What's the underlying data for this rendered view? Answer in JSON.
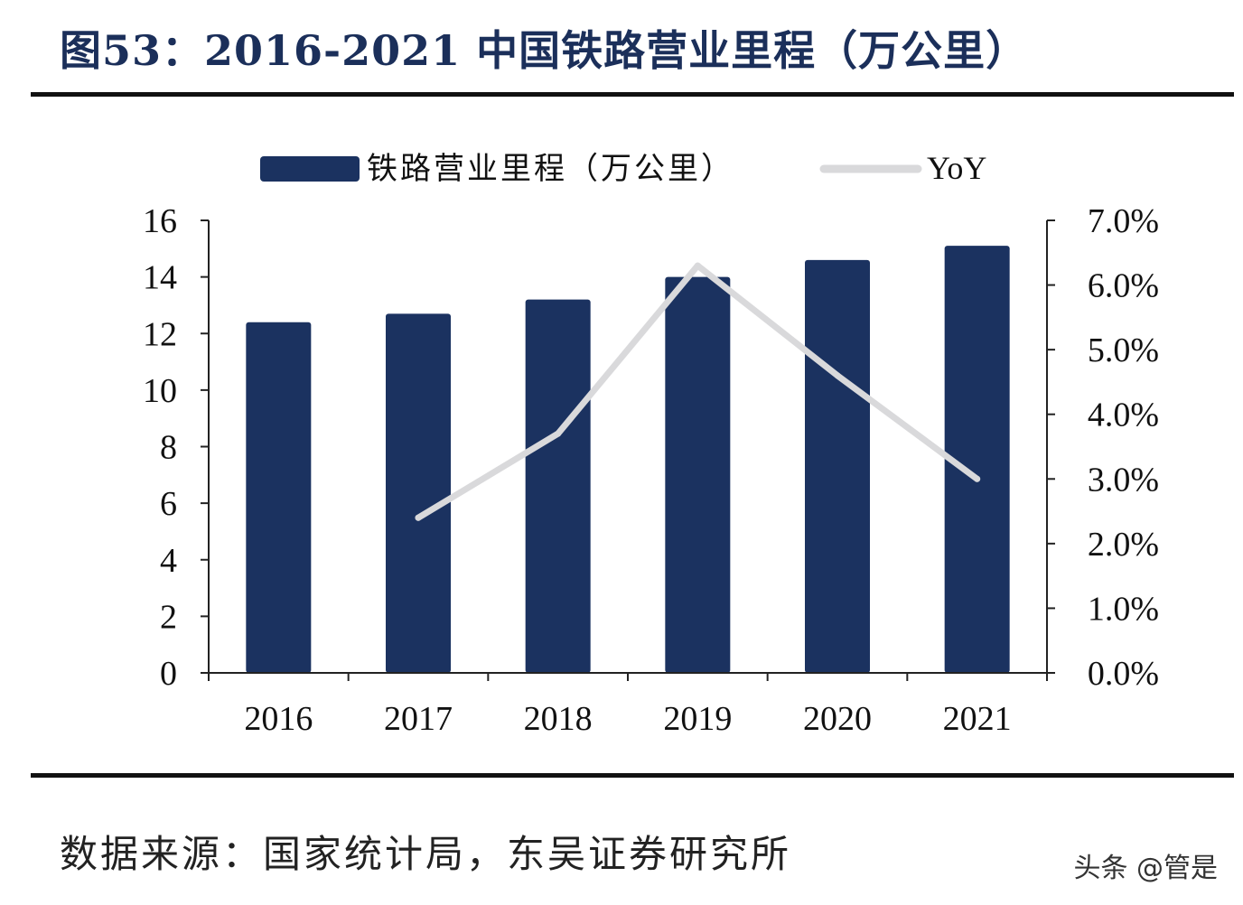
{
  "figure": {
    "title": "图53：2016-2021 中国铁路营业里程（万公里）",
    "source": "数据来源：国家统计局，东吴证券研究所",
    "watermark": "头条 @管是"
  },
  "colors": {
    "bar": "#1b3260",
    "line": "#d9d9db",
    "axis": "#222222",
    "text": "#111111",
    "title": "#1b2f5a"
  },
  "chart_data": {
    "type": "bar",
    "categories": [
      "2016",
      "2017",
      "2018",
      "2019",
      "2020",
      "2021"
    ],
    "series": [
      {
        "name": "铁路营业里程（万公里）",
        "type": "bar",
        "axis": "left",
        "values": [
          12.4,
          12.7,
          13.2,
          14.0,
          14.6,
          15.1
        ]
      },
      {
        "name": "YoY",
        "type": "line",
        "axis": "right",
        "values": [
          null,
          2.4,
          3.7,
          6.3,
          4.6,
          3.0
        ]
      }
    ],
    "y_left": {
      "ylim": [
        0,
        16
      ],
      "ticks": [
        0,
        2,
        4,
        6,
        8,
        10,
        12,
        14,
        16
      ]
    },
    "y_right": {
      "ylim": [
        0,
        7
      ],
      "ticks": [
        "0.0%",
        "1.0%",
        "2.0%",
        "3.0%",
        "4.0%",
        "5.0%",
        "6.0%",
        "7.0%"
      ],
      "unit": "%"
    },
    "legend": {
      "placement": "top-center"
    },
    "grid": false
  }
}
